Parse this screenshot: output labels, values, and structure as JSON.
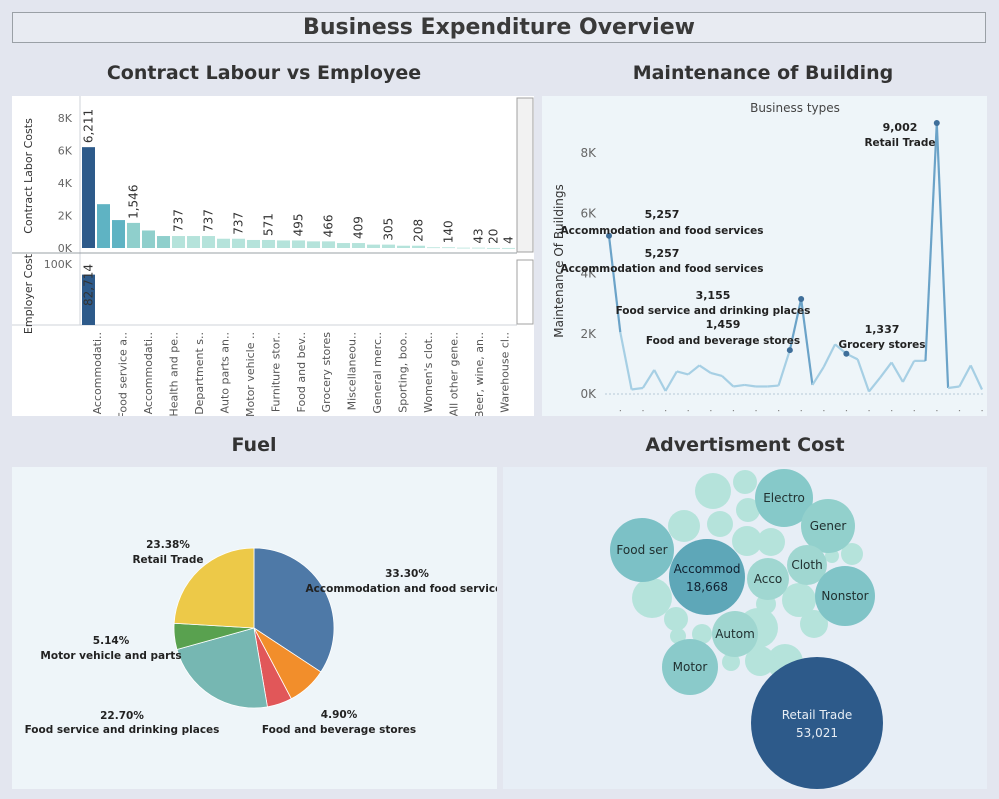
{
  "page_title": "Business Expenditure Overview",
  "sections": {
    "contract": "Contract Labour vs Employee",
    "maintenance": "Maintenance of Building",
    "fuel": "Fuel",
    "ads": "Advertisment Cost"
  },
  "colors": {
    "dark_blue": "#2d5a8a",
    "teal": "#5fb3c3",
    "light_teal": "#a9ddd6",
    "pie_blue": "#4e79a7"
  },
  "chart_data": [
    {
      "type": "bar",
      "name": "contract-labour",
      "ylabel_top": "Contract Labor Costs",
      "ylabel_bottom": "Employer Cost",
      "ylim_top": [
        0,
        8500
      ],
      "yticks_top": [
        "0K",
        "2K",
        "4K",
        "6K",
        "8K"
      ],
      "ytick_values_top": [
        0,
        2000,
        4000,
        6000,
        8000
      ],
      "ylim_bottom": [
        0,
        110000
      ],
      "yticks_bottom": [
        "100K"
      ],
      "ytick_values_bottom": [
        100000
      ],
      "categories": [
        "Accommodati..",
        "Food service a..",
        "Accommodati..",
        "Health and pe..",
        "Department s..",
        "Auto parts an..",
        "Motor vehicle ..",
        "Furniture stor..",
        "Food and bev..",
        "Grocery stores",
        "Miscellaneou..",
        "General merc..",
        "Sporting, boo..",
        "Women's clot..",
        "All other gene..",
        "Beer, wine, an..",
        "Warehouse cl.."
      ],
      "bars": [
        6211,
        2700,
        1720,
        1546,
        1080,
        737,
        737,
        737,
        737,
        571,
        571,
        495,
        495,
        466,
        466,
        409,
        409,
        305,
        305,
        208,
        208,
        140,
        140,
        43,
        43,
        20,
        20,
        4,
        4
      ],
      "bar_labels": [
        "6,211",
        "",
        "",
        "1,546",
        "",
        "",
        "737",
        "",
        "737",
        "",
        "737",
        "",
        "571",
        "",
        "495",
        "",
        "466",
        "",
        "409",
        "",
        "",
        "305",
        "",
        "208",
        "",
        "140",
        "",
        "43",
        "",
        "",
        "20",
        "",
        "",
        "4"
      ],
      "employer_values": [
        82714
      ],
      "employer_labels": [
        "82,714"
      ]
    },
    {
      "type": "line",
      "name": "maintenance-of-building",
      "title": "Business types",
      "ylabel": "Maintenance Of Buildings",
      "ylim": [
        0,
        9500
      ],
      "yticks": [
        "0K",
        "2K",
        "4K",
        "6K",
        "8K"
      ],
      "ytick_values": [
        0,
        2000,
        4000,
        6000,
        8000
      ],
      "values": [
        5257,
        2050,
        150,
        200,
        800,
        100,
        750,
        650,
        950,
        700,
        600,
        250,
        300,
        250,
        250,
        280,
        1459,
        3155,
        300,
        900,
        1650,
        1337,
        1150,
        80,
        550,
        1050,
        400,
        1100,
        1100,
        9002,
        200,
        250,
        950,
        150
      ],
      "annotations": [
        {
          "index": 0,
          "value": "5,257",
          "label": "Accommodation and food services"
        },
        {
          "index": 0,
          "value": "5,257",
          "label": "Accommodation and food services"
        },
        {
          "index": 17,
          "value": "3,155",
          "label": "Food service and drinking places"
        },
        {
          "index": 16,
          "value": "1,459",
          "label": "Food and beverage stores"
        },
        {
          "index": 21,
          "value": "1,337",
          "label": "Grocery stores"
        },
        {
          "index": 29,
          "value": "9,002",
          "label": "Retail Trade"
        }
      ]
    },
    {
      "type": "pie",
      "name": "fuel",
      "slices": [
        {
          "label": "Accommodation and food services",
          "pct": "33.30%",
          "value": 33.3,
          "color": "#4e79a7"
        },
        {
          "label": "",
          "pct": "",
          "value": 7.8,
          "color": "#f28e2b"
        },
        {
          "label": "Food and beverage stores",
          "pct": "4.90%",
          "value": 4.9,
          "color": "#e15759"
        },
        {
          "label": "Food service and drinking places",
          "pct": "22.70%",
          "value": 22.7,
          "color": "#76b7b2"
        },
        {
          "label": "Motor vehicle and parts",
          "pct": "5.14%",
          "value": 5.14,
          "color": "#59a14f"
        },
        {
          "label": "Retail Trade",
          "pct": "23.38%",
          "value": 23.38,
          "color": "#edc948"
        }
      ]
    },
    {
      "type": "bubble",
      "name": "advertisment-cost",
      "labeled": [
        {
          "label": "Retail Trade",
          "value": "53,021"
        },
        {
          "label": "Accommod",
          "value": "18,668"
        },
        {
          "label": "Electro",
          "value": ""
        },
        {
          "label": "Gener",
          "value": ""
        },
        {
          "label": "Food ser",
          "value": ""
        },
        {
          "label": "Acco",
          "value": ""
        },
        {
          "label": "Cloth",
          "value": ""
        },
        {
          "label": "Nonstor",
          "value": ""
        },
        {
          "label": "Autom",
          "value": ""
        },
        {
          "label": "Motor",
          "value": ""
        }
      ]
    }
  ]
}
